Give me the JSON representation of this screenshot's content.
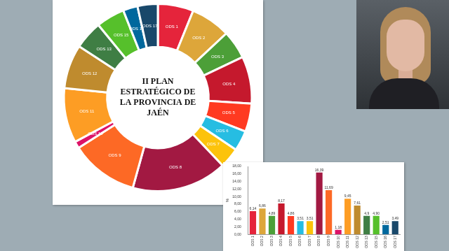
{
  "chart_data": [
    {
      "type": "doughnut",
      "title": "II PLAN ESTRATÉGICO DE LA PROVINCIA DE JAÉN",
      "categories": [
        "ODS 1",
        "ODS 2",
        "ODS 3",
        "ODS 4",
        "ODS 5",
        "ODS 6",
        "ODS 7",
        "ODS 8",
        "ODS 9",
        "ODS 10",
        "ODS 11",
        "ODS 12",
        "ODS 13",
        "ODS 15",
        "ODS 16",
        "ODS 17"
      ],
      "values": [
        6.14,
        6.86,
        4.89,
        8.17,
        4.86,
        3.51,
        3.51,
        16.39,
        11.69,
        1.18,
        9.45,
        7.61,
        4.9,
        4.9,
        2.51,
        3.49
      ],
      "colors": [
        "#e5243b",
        "#dda63a",
        "#4c9f38",
        "#c5192d",
        "#ff3a21",
        "#26bde2",
        "#fcc30b",
        "#a21942",
        "#fd6925",
        "#dd1367",
        "#fd9d24",
        "#bf8b2e",
        "#3f7e44",
        "#56c02b",
        "#00689d",
        "#19486a"
      ],
      "legend": false
    },
    {
      "type": "bar",
      "ylabel": "%",
      "categories": [
        "ODS 1",
        "ODS 2",
        "ODS 3",
        "ODS 4",
        "ODS 5",
        "ODS 6",
        "ODS 7",
        "ODS 8",
        "ODS 9",
        "ODS 10",
        "ODS 11",
        "ODS 12",
        "ODS 13",
        "ODS 15",
        "ODS 16",
        "ODS 17"
      ],
      "values": [
        6.14,
        6.86,
        4.89,
        8.17,
        4.86,
        3.51,
        3.51,
        16.39,
        11.69,
        1.18,
        9.45,
        7.61,
        4.9,
        4.9,
        2.51,
        3.49
      ],
      "value_labels": [
        "6,14",
        "6,86",
        "4,89",
        "8,17",
        "4,86",
        "3,51",
        "3,51",
        "16,39",
        "11,69",
        "1,18",
        "9,45",
        "7,61",
        "4,9",
        "4,90",
        "2,51",
        "3,49"
      ],
      "colors": [
        "#e5243b",
        "#dda63a",
        "#4c9f38",
        "#c5192d",
        "#ff3a21",
        "#26bde2",
        "#fcc30b",
        "#a21942",
        "#fd6925",
        "#dd1367",
        "#fd9d24",
        "#bf8b2e",
        "#3f7e44",
        "#56c02b",
        "#00689d",
        "#19486a"
      ],
      "ylim": [
        0,
        18
      ],
      "yticks": [
        {
          "value": 0,
          "label": "0,00"
        },
        {
          "value": 2,
          "label": "2,00"
        },
        {
          "value": 4,
          "label": "4,00"
        },
        {
          "value": 6,
          "label": "6,00"
        },
        {
          "value": 8,
          "label": "8,00"
        },
        {
          "value": 10,
          "label": "10,00"
        },
        {
          "value": 12,
          "label": "12,00"
        },
        {
          "value": 14,
          "label": "14,00"
        },
        {
          "value": 16,
          "label": "16,00"
        },
        {
          "value": 18,
          "label": "18,00"
        }
      ],
      "grid": false,
      "data_labels": true,
      "legend": false
    }
  ]
}
